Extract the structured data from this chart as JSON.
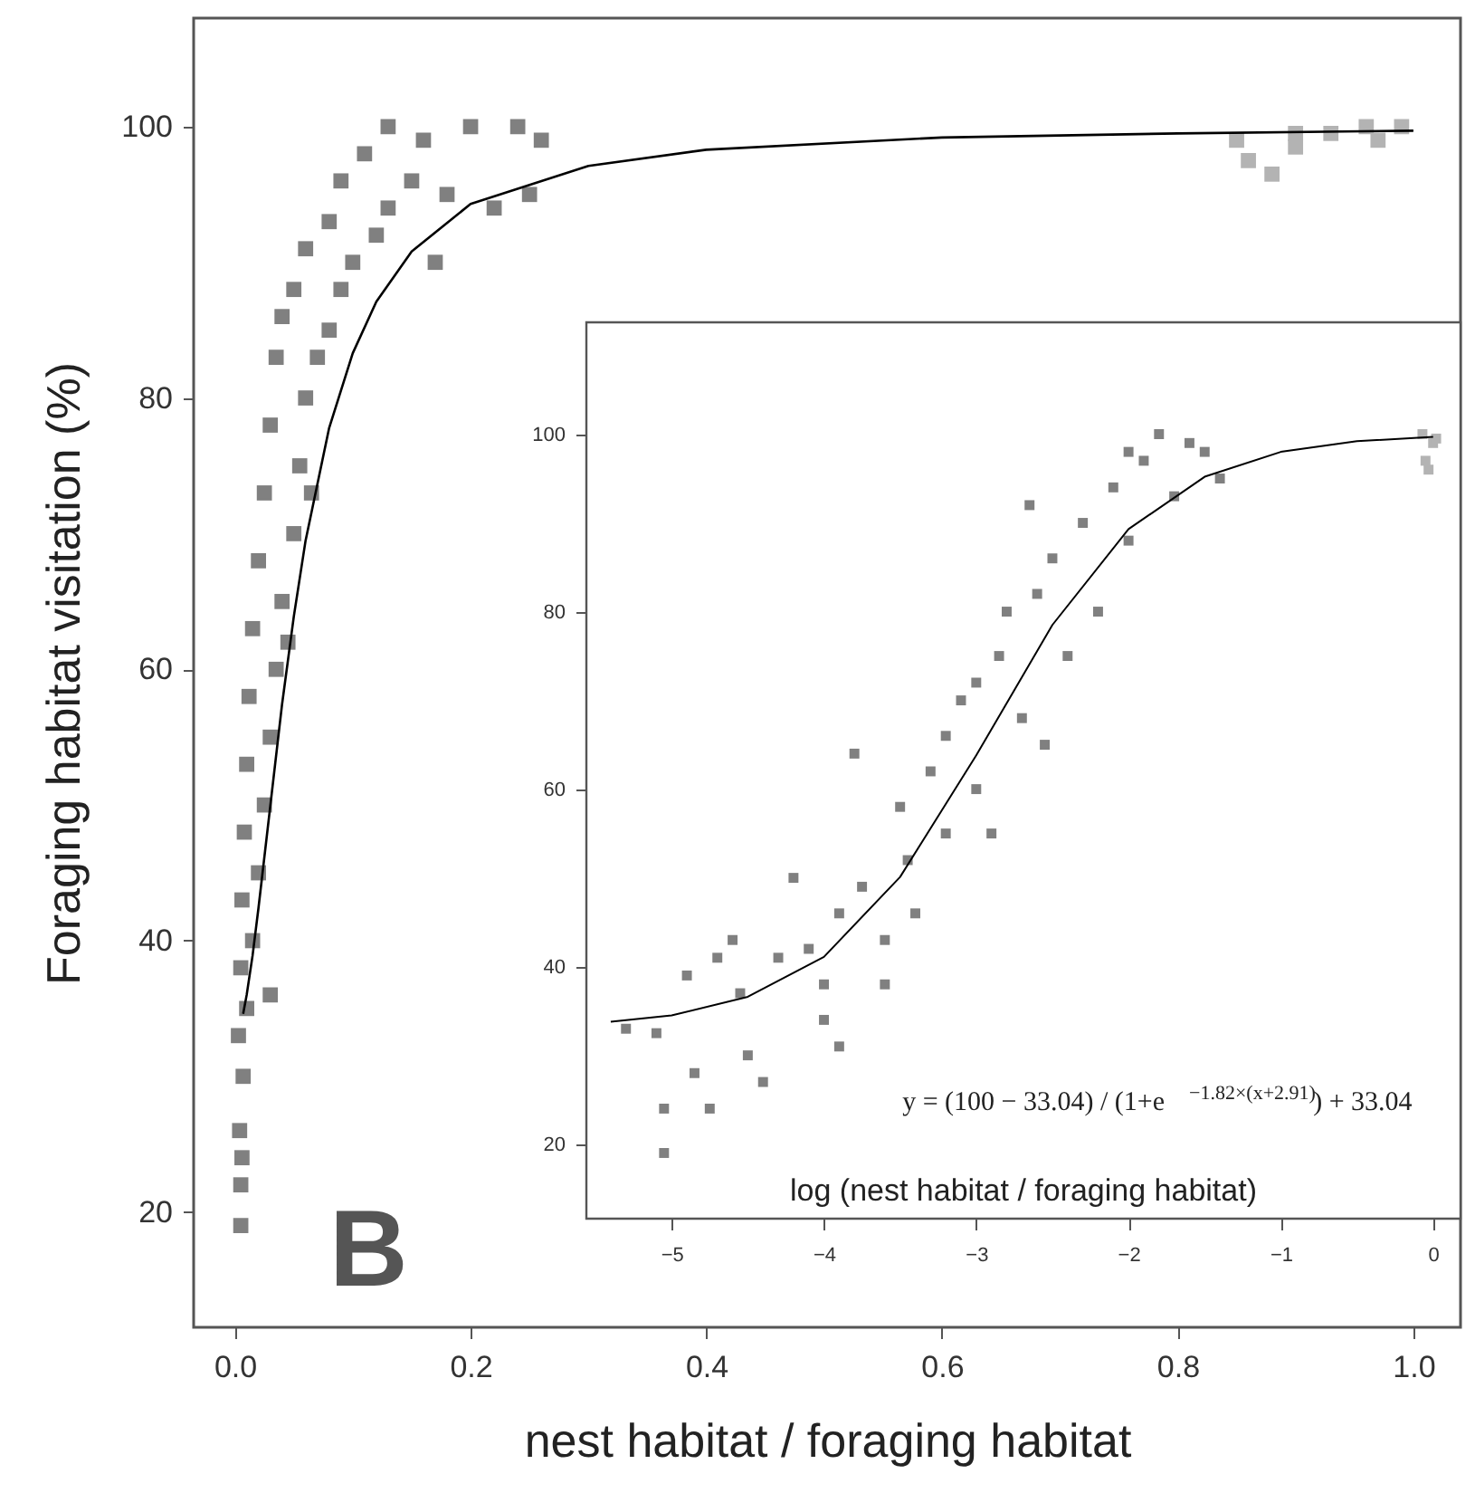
{
  "chart_data": [
    {
      "type": "scatter",
      "xlabel": "nest habitat / foraging habitat",
      "ylabel": "Foraging habitat visitation (%)",
      "xlim": [
        -0.035,
        1.04
      ],
      "ylim": [
        11.5,
        108
      ],
      "xticks": [
        {
          "value": 0,
          "label": "0.0"
        },
        {
          "value": 0.2,
          "label": "0.2"
        },
        {
          "value": 0.4,
          "label": "0.4"
        },
        {
          "value": 0.6,
          "label": "0.6"
        },
        {
          "value": 0.8,
          "label": "0.8"
        },
        {
          "value": 1,
          "label": "1.0"
        }
      ],
      "yticks": [
        20,
        40,
        60,
        80,
        100
      ],
      "grid": false,
      "annotations": [
        "B"
      ],
      "series": [
        {
          "marker": "square",
          "color": "#808080",
          "x": [
            0.005,
            0.005,
            0.006,
            0.004,
            0.007,
            0.003,
            0.01,
            0.005,
            0.015,
            0.006,
            0.02,
            0.008,
            0.025,
            0.01,
            0.03,
            0.012,
            0.035,
            0.015,
            0.04,
            0.02,
            0.05,
            0.025,
            0.055,
            0.03,
            0.06,
            0.035,
            0.07,
            0.04,
            0.08,
            0.05,
            0.09,
            0.06,
            0.1,
            0.08,
            0.12,
            0.09,
            0.13,
            0.11,
            0.15,
            0.13,
            0.16,
            0.18,
            0.2,
            0.22,
            0.24,
            0.26,
            0.25,
            0.17,
            0.03,
            0.045,
            0.065
          ],
          "values": [
            19,
            22,
            24,
            26,
            30,
            33,
            35,
            38,
            40,
            43,
            45,
            48,
            50,
            53,
            55,
            58,
            60,
            63,
            65,
            68,
            70,
            73,
            75,
            78,
            80,
            83,
            83,
            86,
            85,
            88,
            88,
            91,
            90,
            93,
            92,
            96,
            94,
            98,
            96,
            100,
            99,
            95,
            100,
            94,
            100,
            99,
            95,
            90,
            36,
            62,
            73
          ]
        },
        {
          "marker": "square",
          "color": "#b3b3b3",
          "x": [
            0.85,
            0.86,
            0.88,
            0.9,
            0.93,
            0.96,
            0.99,
            0.97,
            0.9
          ],
          "values": [
            99,
            97.5,
            96.5,
            98.5,
            99.5,
            100,
            100,
            99,
            99.5
          ]
        },
        {
          "type": "line",
          "color": "#000000",
          "x": [
            0.007,
            0.01,
            0.015,
            0.02,
            0.03,
            0.04,
            0.05,
            0.06,
            0.08,
            0.1,
            0.12,
            0.15,
            0.2,
            0.3,
            0.4,
            0.6,
            0.8,
            1.0
          ],
          "values": [
            34.6,
            36.0,
            38.9,
            42.4,
            49.9,
            57.4,
            63.9,
            69.5,
            77.8,
            83.3,
            87.1,
            90.8,
            94.3,
            97.1,
            98.3,
            99.2,
            99.5,
            99.7
          ]
        }
      ]
    },
    {
      "type": "scatter",
      "xlabel": "log (nest habitat / foraging habitat)",
      "xlim": [
        -5.56,
        0.18
      ],
      "ylim": [
        11.6,
        112.6
      ],
      "xticks": [
        -5,
        -4,
        -3,
        -2,
        -1,
        0
      ],
      "yticks": [
        20,
        40,
        60,
        80,
        100
      ],
      "grid": false,
      "annotations": [
        "y = (100 − 33.04) / (1+e$^{−1.82×(x+2.91)}$) + 33.04"
      ],
      "series": [
        {
          "marker": "square",
          "color": "#808080",
          "x": [
            -5.3,
            -5.1,
            -5.05,
            -5.05,
            -4.9,
            -4.85,
            -4.75,
            -4.7,
            -4.6,
            -4.55,
            -4.5,
            -4.3,
            -4.2,
            -4.1,
            -4.0,
            -4.0,
            -3.9,
            -3.8,
            -3.75,
            -3.6,
            -3.5,
            -3.45,
            -3.4,
            -3.3,
            -3.2,
            -3.2,
            -3.1,
            -3.0,
            -3.0,
            -2.9,
            -2.85,
            -2.8,
            -2.7,
            -2.6,
            -2.55,
            -2.5,
            -2.4,
            -2.3,
            -2.2,
            -2.1,
            -2.0,
            -1.9,
            -1.8,
            -1.6,
            -1.5,
            -1.4,
            -3.6,
            -4.4,
            -3.9,
            -2.65,
            -2.0,
            -1.7
          ],
          "values": [
            33,
            32.5,
            24,
            19,
            39,
            28,
            24,
            41,
            43,
            37,
            30,
            41,
            50,
            42,
            38,
            34,
            46,
            64,
            49,
            43,
            58,
            52,
            46,
            62,
            66,
            55,
            70,
            72,
            60,
            55,
            75,
            80,
            68,
            82,
            65,
            86,
            75,
            90,
            80,
            94,
            88,
            97,
            100,
            99,
            98,
            95,
            38,
            27,
            31,
            92,
            98,
            93
          ]
        },
        {
          "marker": "square",
          "color": "#b3b3b3",
          "x": [
            -0.07,
            0,
            -0.05,
            0.02,
            -0.03
          ],
          "values": [
            100,
            99,
            97,
            99.5,
            96
          ]
        },
        {
          "type": "line",
          "color": "#000000",
          "x": [
            -5.4,
            -5,
            -4.5,
            -4,
            -3.5,
            -3,
            -2.5,
            -2,
            -1.5,
            -1,
            -0.5,
            0
          ],
          "values": [
            33.8,
            34.5,
            36.6,
            41.1,
            50.1,
            63.8,
            78.5,
            89.3,
            95.2,
            98.0,
            99.2,
            99.7
          ]
        }
      ]
    }
  ]
}
